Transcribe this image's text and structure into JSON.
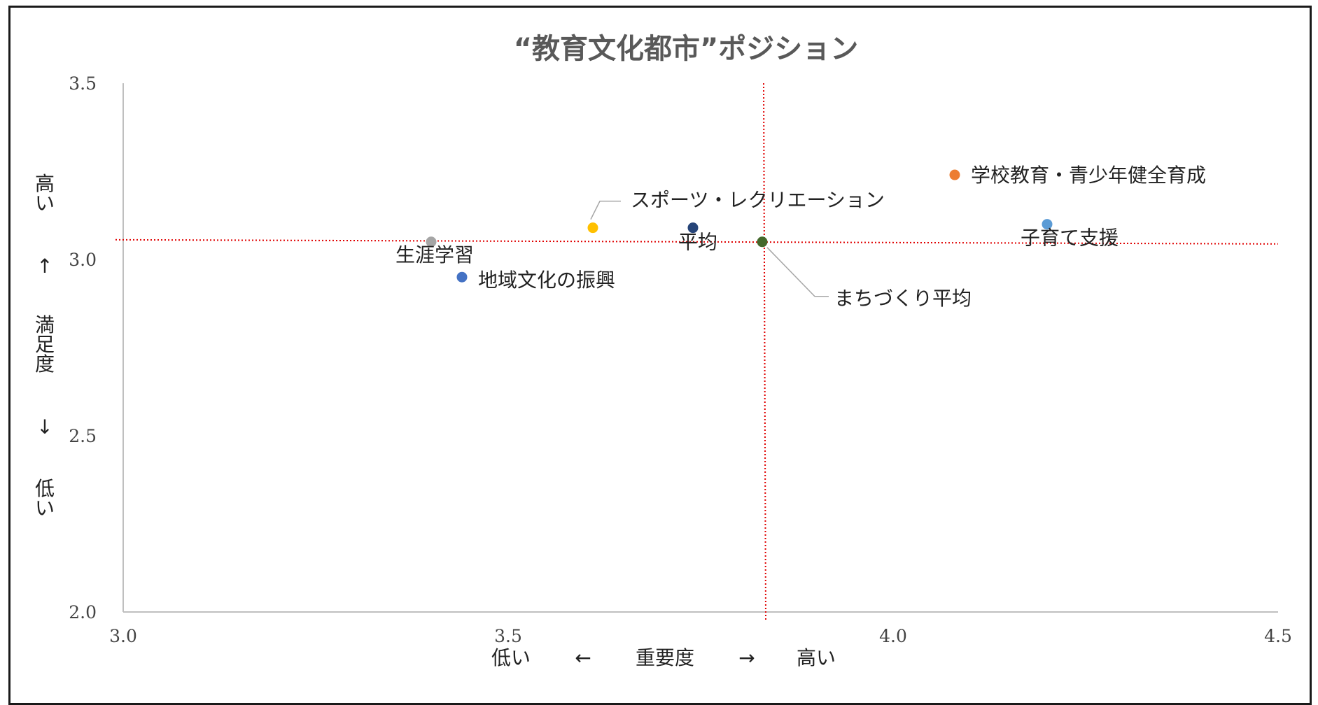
{
  "chart_data": {
    "type": "scatter",
    "title": "“教育文化都市”ポジション",
    "xlabel": {
      "low": "低い",
      "arrow_left": "←",
      "name": "重要度",
      "arrow_right": "→",
      "high": "高い"
    },
    "ylabel": {
      "high": [
        "高",
        "い"
      ],
      "arrow_up": "↑",
      "name": [
        "満",
        "足",
        "度"
      ],
      "arrow_down": "↓",
      "low": [
        "低",
        "い"
      ]
    },
    "xlim": [
      3.0,
      4.5
    ],
    "ylim": [
      2.0,
      3.5
    ],
    "x_ticks": [
      "3.0",
      "3.5",
      "4.0",
      "4.5"
    ],
    "y_ticks": [
      "2.0",
      "2.5",
      "3.0",
      "3.5"
    ],
    "grid": false,
    "points": [
      {
        "label": "生涯学習",
        "x": 3.4,
        "y": 3.05,
        "color": "#a5a5a5"
      },
      {
        "label": "地域文化の振興",
        "x": 3.44,
        "y": 2.95,
        "color": "#4472c4"
      },
      {
        "label": "スポーツ・レクリエーション",
        "x": 3.61,
        "y": 3.09,
        "color": "#ffc000"
      },
      {
        "label": "平均",
        "x": 3.74,
        "y": 3.09,
        "color": "#264478"
      },
      {
        "label": "まちづくり平均",
        "x": 3.83,
        "y": 3.05,
        "color": "#43682b"
      },
      {
        "label": "学校教育・青少年健全育成",
        "x": 4.08,
        "y": 3.24,
        "color": "#ed7d31"
      },
      {
        "label": "子育て支援",
        "x": 4.2,
        "y": 3.1,
        "color": "#5b9bd5"
      }
    ],
    "reference_lines": {
      "horizontal_y": 3.05,
      "vertical_x": 3.83,
      "color": "#e00000",
      "style": "dotted"
    }
  }
}
